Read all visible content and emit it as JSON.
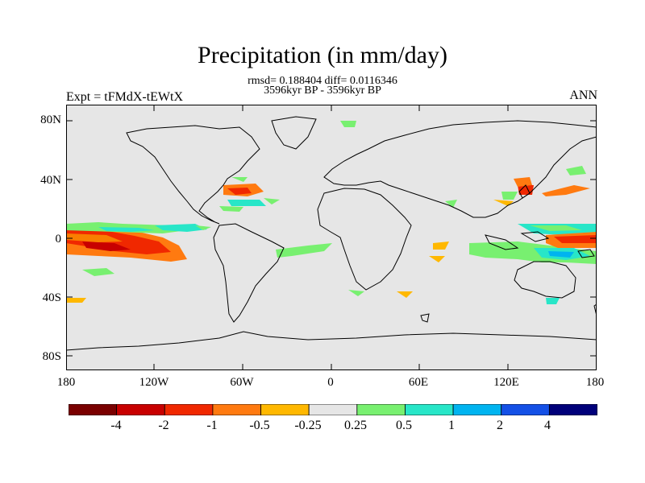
{
  "title": "Precipitation (in mm/day)",
  "stats": "rmsd= 0.188404  diff= 0.0116346",
  "period": "3596kyr BP - 3596kyr BP",
  "expt": "Expt = tFMdX-tEWtX",
  "season": "ANN",
  "lat_labels": [
    "80N",
    "40N",
    "0",
    "40S",
    "80S"
  ],
  "lon_labels": [
    "180",
    "120W",
    "60W",
    "0",
    "60E",
    "120E",
    "180"
  ],
  "colorbar": {
    "labels": [
      "-4",
      "-2",
      "-1",
      "-0.5",
      "-0.25",
      "0.25",
      "0.5",
      "1",
      "2",
      "4"
    ],
    "colors": [
      "#7a0000",
      "#c80000",
      "#f02800",
      "#ff7a10",
      "#ffb800",
      "#e6e6e6",
      "#78f070",
      "#28e6c8",
      "#00b4f0",
      "#1450e6",
      "#00007a"
    ]
  },
  "colors": {
    "background": "#e6e6e6",
    "coast": "#000000"
  }
}
